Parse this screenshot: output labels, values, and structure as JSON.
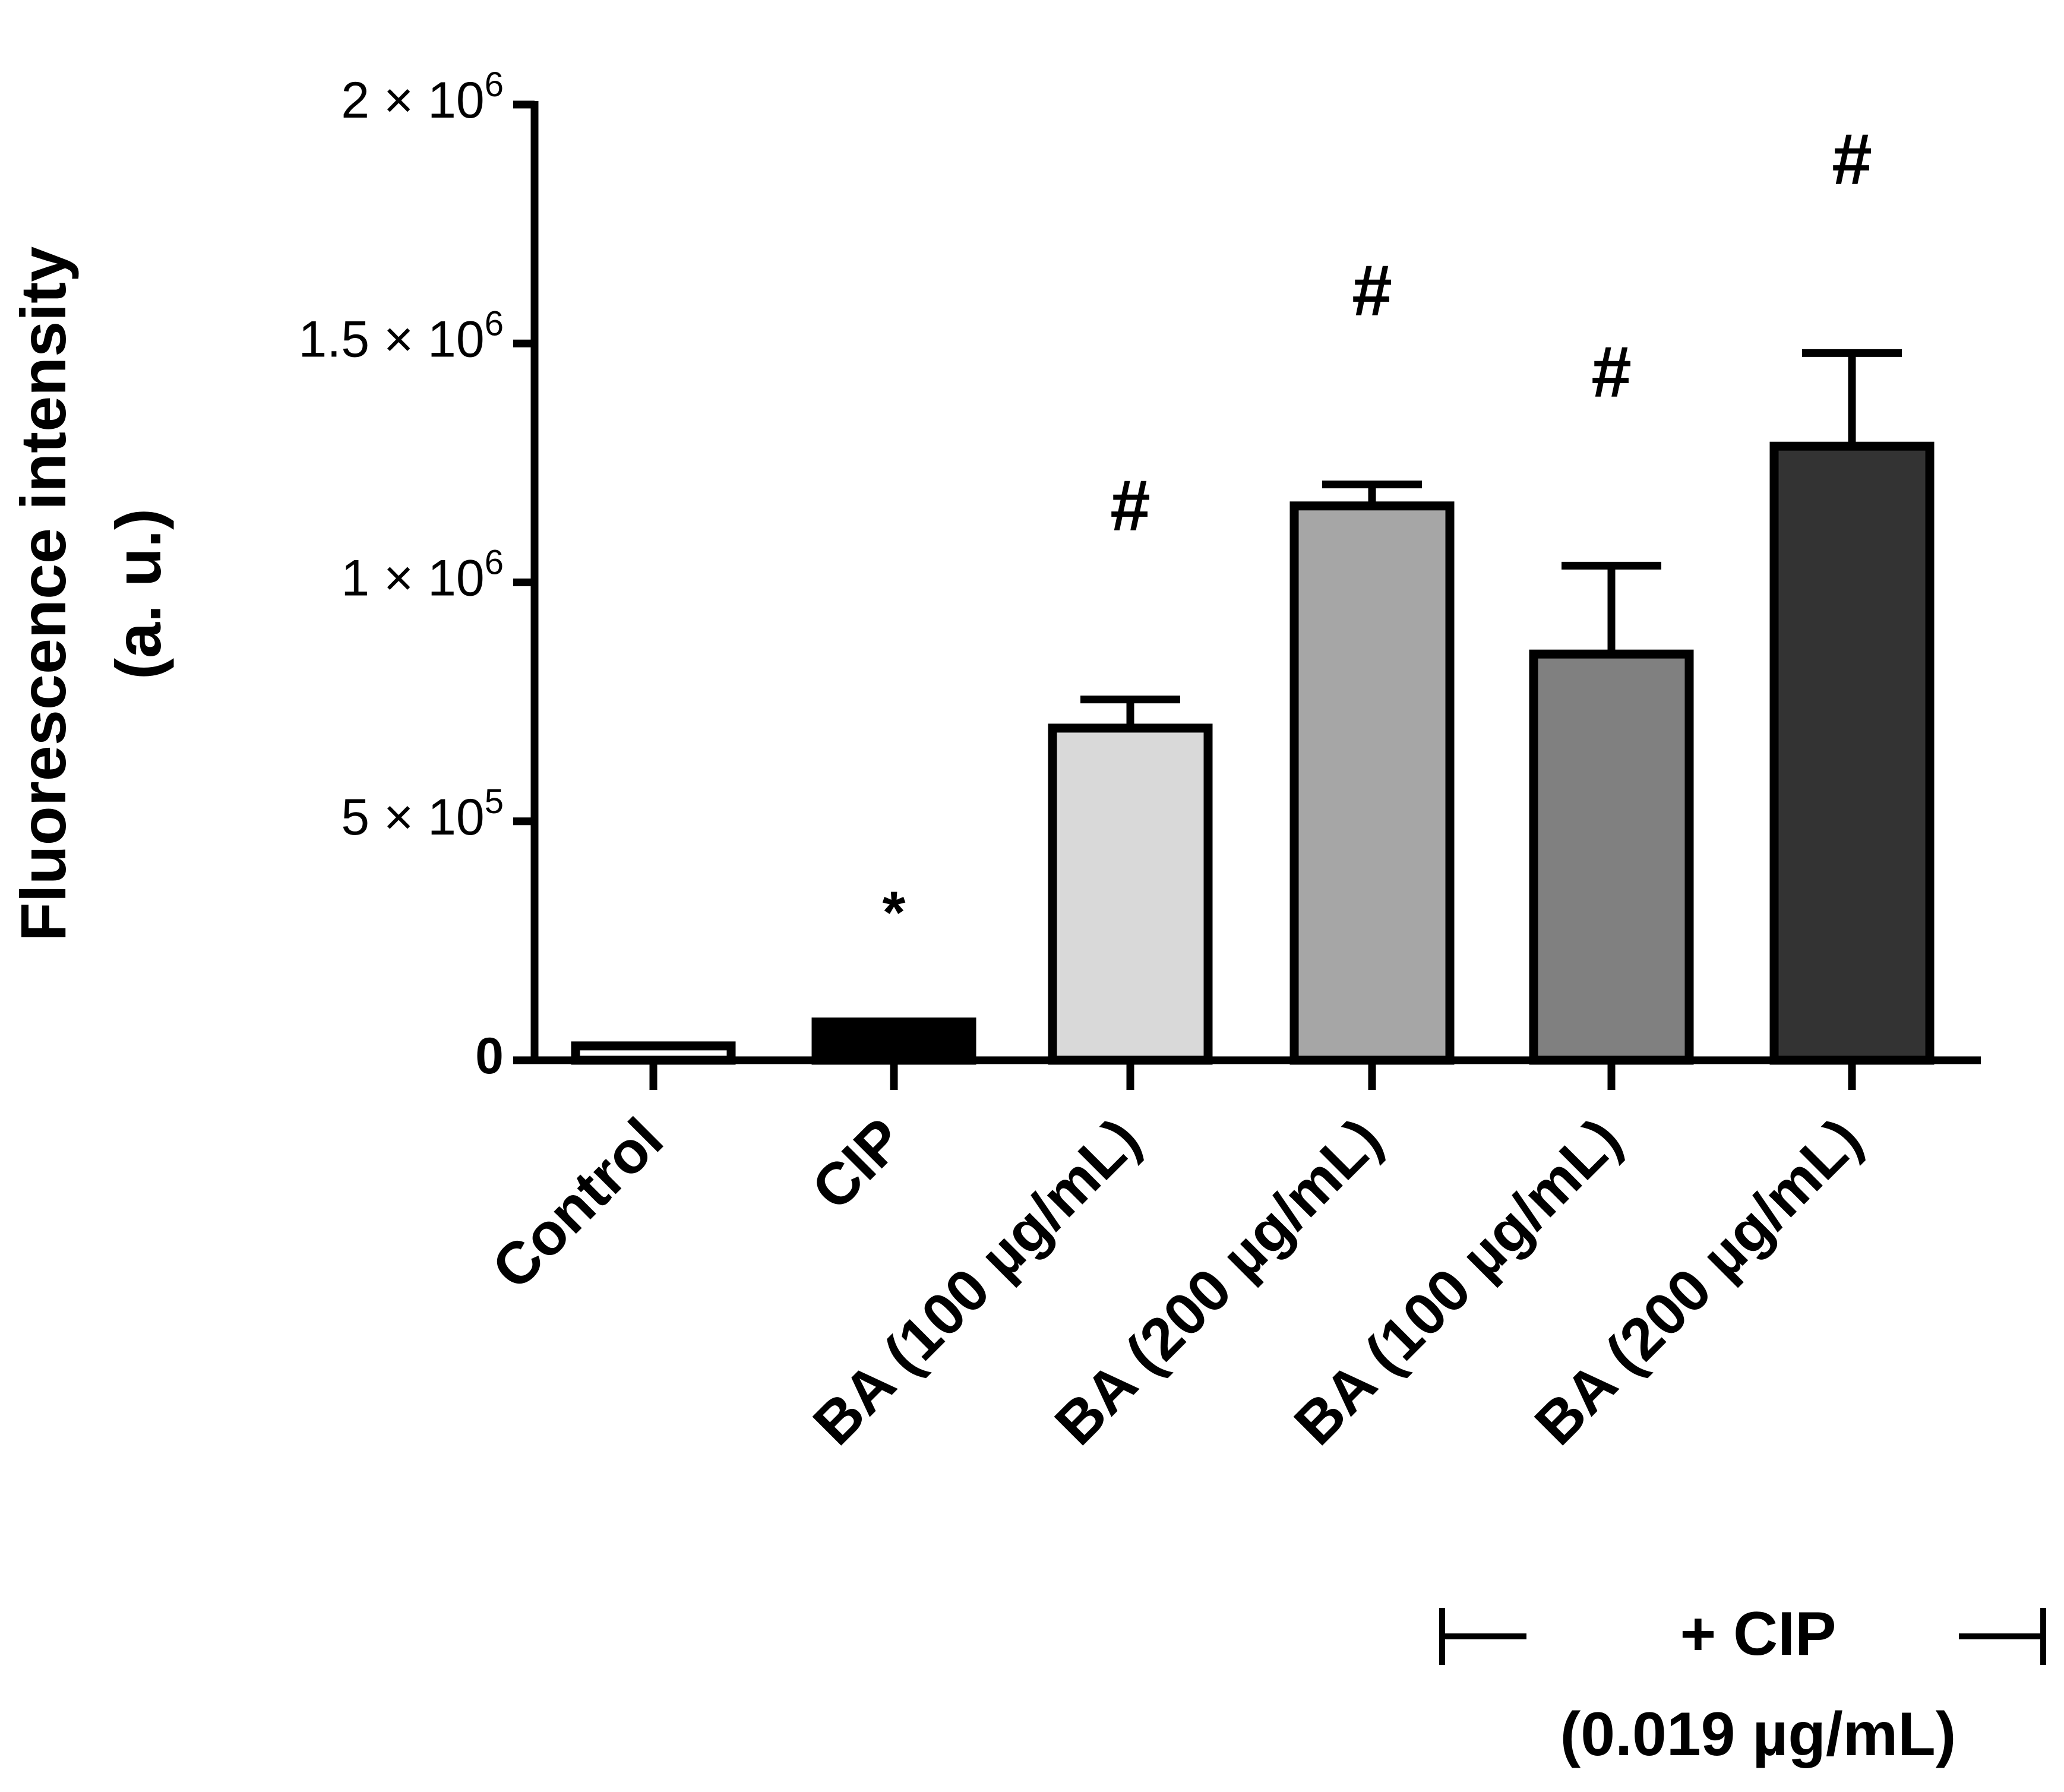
{
  "chart_data": {
    "type": "bar",
    "title": "",
    "xlabel": "",
    "ylabel": "Fluorescence intensity",
    "ylabel_line2": "(a. u.)",
    "ylim": [
      0,
      2000000
    ],
    "yticks": [
      {
        "value": 0,
        "label": "0"
      },
      {
        "value": 500000,
        "label": "5 × 10",
        "exp": "5"
      },
      {
        "value": 1000000,
        "label": "1 × 10",
        "exp": "6"
      },
      {
        "value": 1500000,
        "label": "1.5 × 10",
        "exp": "6"
      },
      {
        "value": 2000000,
        "label": "2 × 10",
        "exp": "6"
      }
    ],
    "categories": [
      "Control",
      "CIP",
      "BA (100 µg/mL)",
      "BA (200 µg/mL)",
      "BA (100 µg/mL)",
      "BA (200 µg/mL)"
    ],
    "values": [
      30000,
      80000,
      695000,
      1160000,
      850000,
      1285000
    ],
    "errors": [
      0,
      0,
      60000,
      45000,
      185000,
      195000
    ],
    "fill_colors": [
      "#ffffff",
      "#000000",
      "#d9d9d9",
      "#a6a6a6",
      "#808080",
      "#333333"
    ],
    "annotations": [
      "",
      "*",
      "#",
      "#",
      "#",
      "#"
    ],
    "group_bracket": {
      "label": "+ CIP",
      "sublabel": "(0.019 µg/mL)",
      "categories": [
        4,
        5
      ]
    }
  },
  "colors": {
    "axis": "#000000",
    "background": "#ffffff"
  }
}
